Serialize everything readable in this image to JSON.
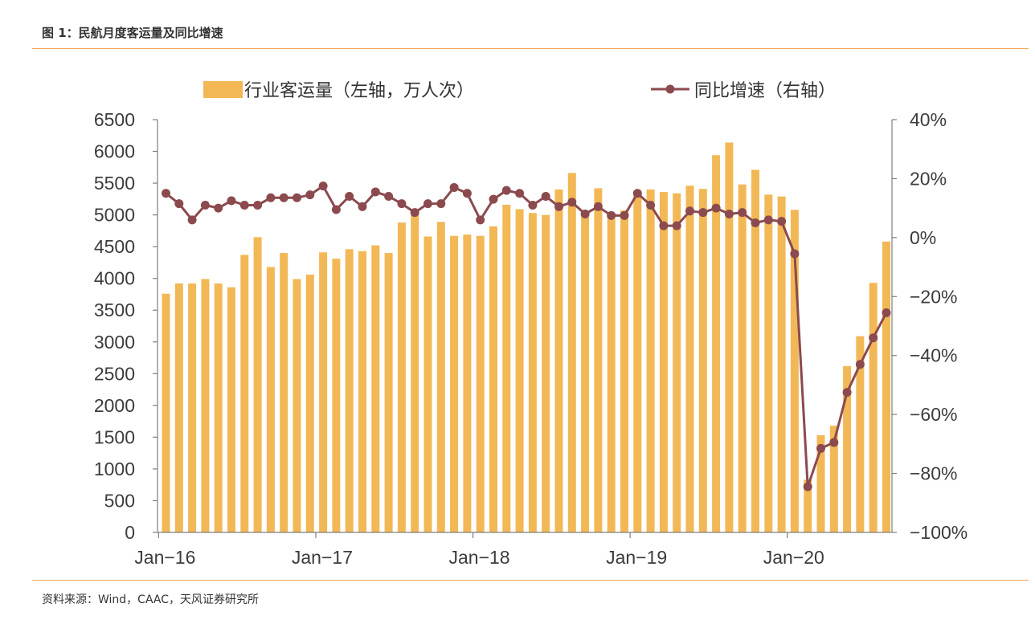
{
  "figure": {
    "title": "图 1：民航月度客运量及同比增速",
    "source": "资料来源：Wind，CAAC，天风证券研究所"
  },
  "chart_data": {
    "type": "bar+line",
    "title": "",
    "xlabel": "",
    "ylabel": "",
    "x_tick_labels": [
      "Jan−16",
      "Jan−17",
      "Jan−18",
      "Jan−19",
      "Jan−20"
    ],
    "left_axis": {
      "ylim": [
        0,
        6500
      ],
      "ticks": [
        "0",
        "500",
        "1000",
        "1500",
        "2000",
        "2500",
        "3000",
        "3500",
        "4000",
        "4500",
        "5000",
        "5500",
        "6000",
        "6500"
      ]
    },
    "right_axis": {
      "ylim": [
        -100,
        40
      ],
      "unit": "%",
      "ticks": [
        "−100%",
        "−80%",
        "−60%",
        "−40%",
        "−20%",
        "0%",
        "20%",
        "40%"
      ]
    },
    "grid": false,
    "legend_position": "top",
    "months": [
      "2016-01",
      "2016-02",
      "2016-03",
      "2016-04",
      "2016-05",
      "2016-06",
      "2016-07",
      "2016-08",
      "2016-09",
      "2016-10",
      "2016-11",
      "2016-12",
      "2017-01",
      "2017-02",
      "2017-03",
      "2017-04",
      "2017-05",
      "2017-06",
      "2017-07",
      "2017-08",
      "2017-09",
      "2017-10",
      "2017-11",
      "2017-12",
      "2018-01",
      "2018-02",
      "2018-03",
      "2018-04",
      "2018-05",
      "2018-06",
      "2018-07",
      "2018-08",
      "2018-09",
      "2018-10",
      "2018-11",
      "2018-12",
      "2019-01",
      "2019-02",
      "2019-03",
      "2019-04",
      "2019-05",
      "2019-06",
      "2019-07",
      "2019-08",
      "2019-09",
      "2019-10",
      "2019-11",
      "2019-12",
      "2020-01",
      "2020-02",
      "2020-03",
      "2020-04",
      "2020-05",
      "2020-06",
      "2020-07",
      "2020-08"
    ],
    "series": [
      {
        "name": "行业客运量（左轴，万人次）",
        "type": "bar",
        "axis": "left",
        "color": "#f2b856",
        "values": [
          3760,
          3920,
          3920,
          3990,
          3920,
          3860,
          4370,
          4650,
          4180,
          4400,
          3990,
          4060,
          4410,
          4310,
          4460,
          4430,
          4520,
          4400,
          4880,
          5030,
          4660,
          4890,
          4670,
          4690,
          4670,
          4820,
          5160,
          5090,
          5030,
          5000,
          5400,
          5660,
          5060,
          5420,
          5030,
          5070,
          5380,
          5400,
          5360,
          5340,
          5460,
          5410,
          5940,
          6140,
          5480,
          5710,
          5320,
          5290,
          5080,
          830,
          1530,
          1680,
          2620,
          3090,
          3930,
          4580
        ]
      },
      {
        "name": "同比增速（右轴）",
        "type": "line",
        "axis": "right",
        "color": "#8b4a4e",
        "values": [
          15,
          11.5,
          6,
          11,
          10,
          12.5,
          11,
          11,
          13.5,
          13.5,
          13.5,
          14.5,
          17.5,
          9.5,
          14,
          10.5,
          15.5,
          14,
          11.5,
          8.5,
          11.5,
          11.5,
          17,
          15,
          6,
          13,
          16,
          15,
          11,
          14,
          10.5,
          12,
          8,
          10.5,
          7.5,
          7.5,
          15,
          11,
          4,
          4,
          9,
          8.5,
          10,
          8,
          8.5,
          5,
          6,
          5.5,
          -5.5,
          -84.5,
          -71.5,
          -69.5,
          -52.5,
          -43,
          -34,
          -25.5
        ]
      }
    ]
  }
}
